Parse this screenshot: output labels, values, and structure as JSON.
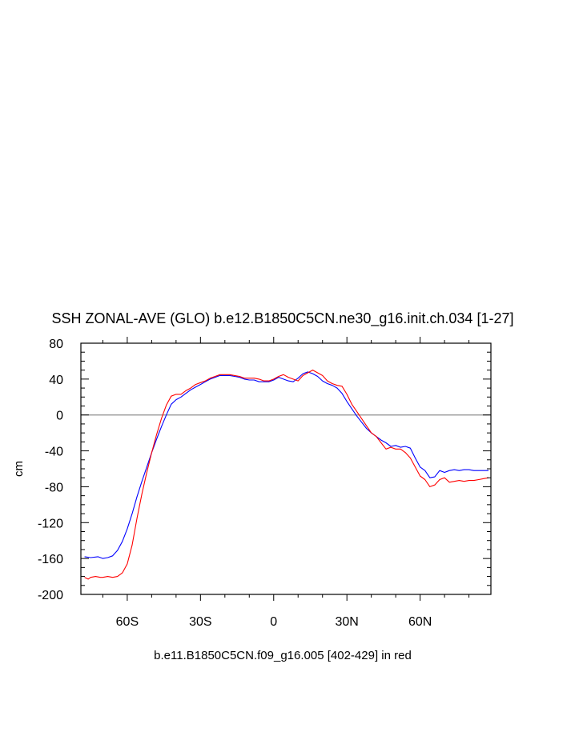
{
  "chart_data": {
    "type": "line",
    "title": "SSH ZONAL-AVE (GLO) b.e12.B1850C5CN.ne30_g16.init.ch.034 [1-27]",
    "ylabel": "cm",
    "caption": "b.e11.B1850C5CN.f09_g16.005 [402-429] in red",
    "xlim": [
      -79,
      89
    ],
    "ylim": [
      -200,
      80
    ],
    "grid": false,
    "reference_line": 0,
    "x_ticks": [
      {
        "value": -60,
        "label": "60S"
      },
      {
        "value": -30,
        "label": "30S"
      },
      {
        "value": 0,
        "label": "0"
      },
      {
        "value": 30,
        "label": "30N"
      },
      {
        "value": 60,
        "label": "60N"
      }
    ],
    "y_ticks": [
      {
        "value": 80,
        "label": "80"
      },
      {
        "value": 40,
        "label": "40"
      },
      {
        "value": 0,
        "label": "0"
      },
      {
        "value": -40,
        "label": "-40"
      },
      {
        "value": -80,
        "label": "-80"
      },
      {
        "value": -120,
        "label": "-120"
      },
      {
        "value": -160,
        "label": "-160"
      },
      {
        "value": -200,
        "label": "-200"
      }
    ],
    "series": [
      {
        "color": "#0000ff",
        "x": [
          -77.5,
          -75,
          -72,
          -70,
          -68,
          -66,
          -64,
          -62,
          -60,
          -58,
          -56,
          -54,
          -52,
          -50,
          -48,
          -46,
          -44,
          -42,
          -40,
          -38,
          -36,
          -34,
          -32,
          -30,
          -28,
          -26,
          -24,
          -22,
          -20,
          -18,
          -16,
          -14,
          -12,
          -10,
          -8,
          -6,
          -4,
          -2,
          0,
          2,
          4,
          6,
          8,
          10,
          12,
          14,
          16,
          18,
          20,
          22,
          24,
          26,
          28,
          30,
          32,
          34,
          36,
          38,
          40,
          42,
          44,
          46,
          48,
          50,
          52,
          54,
          56,
          58,
          60,
          62,
          64,
          66,
          68,
          70,
          72,
          74,
          76,
          78,
          80,
          82,
          84,
          86,
          88
        ],
        "y": [
          -158,
          -159,
          -158,
          -160,
          -159,
          -157,
          -151,
          -141,
          -127,
          -110,
          -91,
          -74,
          -58,
          -42,
          -27,
          -13,
          0,
          12,
          17,
          20,
          24,
          28,
          31,
          34,
          37,
          40,
          42,
          44,
          44,
          44,
          43,
          42,
          40,
          39,
          39,
          37,
          37,
          37,
          39,
          42,
          40,
          38,
          37,
          41,
          46,
          48,
          46,
          43,
          38,
          35,
          33,
          30,
          24,
          15,
          7,
          -1,
          -8,
          -15,
          -20,
          -24,
          -28,
          -31,
          -35,
          -34,
          -36,
          -35,
          -37,
          -48,
          -58,
          -62,
          -70,
          -69,
          -62,
          -64,
          -62,
          -61,
          -62,
          -61,
          -61,
          -62,
          -62,
          -62,
          -62
        ]
      },
      {
        "color": "#ff0000",
        "x": [
          -77.5,
          -76,
          -75,
          -73,
          -71,
          -70,
          -68,
          -66,
          -64,
          -62,
          -60,
          -58,
          -56,
          -54,
          -52,
          -50,
          -48,
          -46,
          -44,
          -42,
          -40,
          -38,
          -36,
          -34,
          -32,
          -30,
          -28,
          -26,
          -24,
          -22,
          -20,
          -18,
          -16,
          -14,
          -12,
          -10,
          -8,
          -6,
          -4,
          -2,
          0,
          2,
          4,
          6,
          8,
          10,
          12,
          14,
          16,
          18,
          20,
          22,
          24,
          26,
          28,
          30,
          32,
          34,
          36,
          38,
          40,
          42,
          44,
          46,
          48,
          50,
          52,
          54,
          56,
          58,
          60,
          62,
          64,
          66,
          68,
          70,
          72,
          74,
          76,
          78,
          80,
          82,
          84,
          86,
          88
        ],
        "y": [
          -181,
          -183,
          -181,
          -180,
          -181,
          -181,
          -180,
          -181,
          -180,
          -176,
          -166,
          -145,
          -115,
          -88,
          -64,
          -42,
          -22,
          -4,
          11,
          21,
          23,
          23,
          27,
          30,
          34,
          36,
          38,
          41,
          43,
          45,
          45,
          45,
          44,
          43,
          41,
          41,
          41,
          40,
          38,
          38,
          40,
          43,
          45,
          42,
          40,
          38,
          44,
          47,
          50,
          47,
          44,
          38,
          35,
          33,
          32,
          23,
          12,
          4,
          -4,
          -12,
          -20,
          -24,
          -31,
          -38,
          -36,
          -38,
          -38,
          -42,
          -48,
          -58,
          -68,
          -72,
          -80,
          -78,
          -72,
          -70,
          -75,
          -74,
          -73,
          -74,
          -73,
          -73,
          -72,
          -71,
          -70
        ]
      }
    ]
  }
}
